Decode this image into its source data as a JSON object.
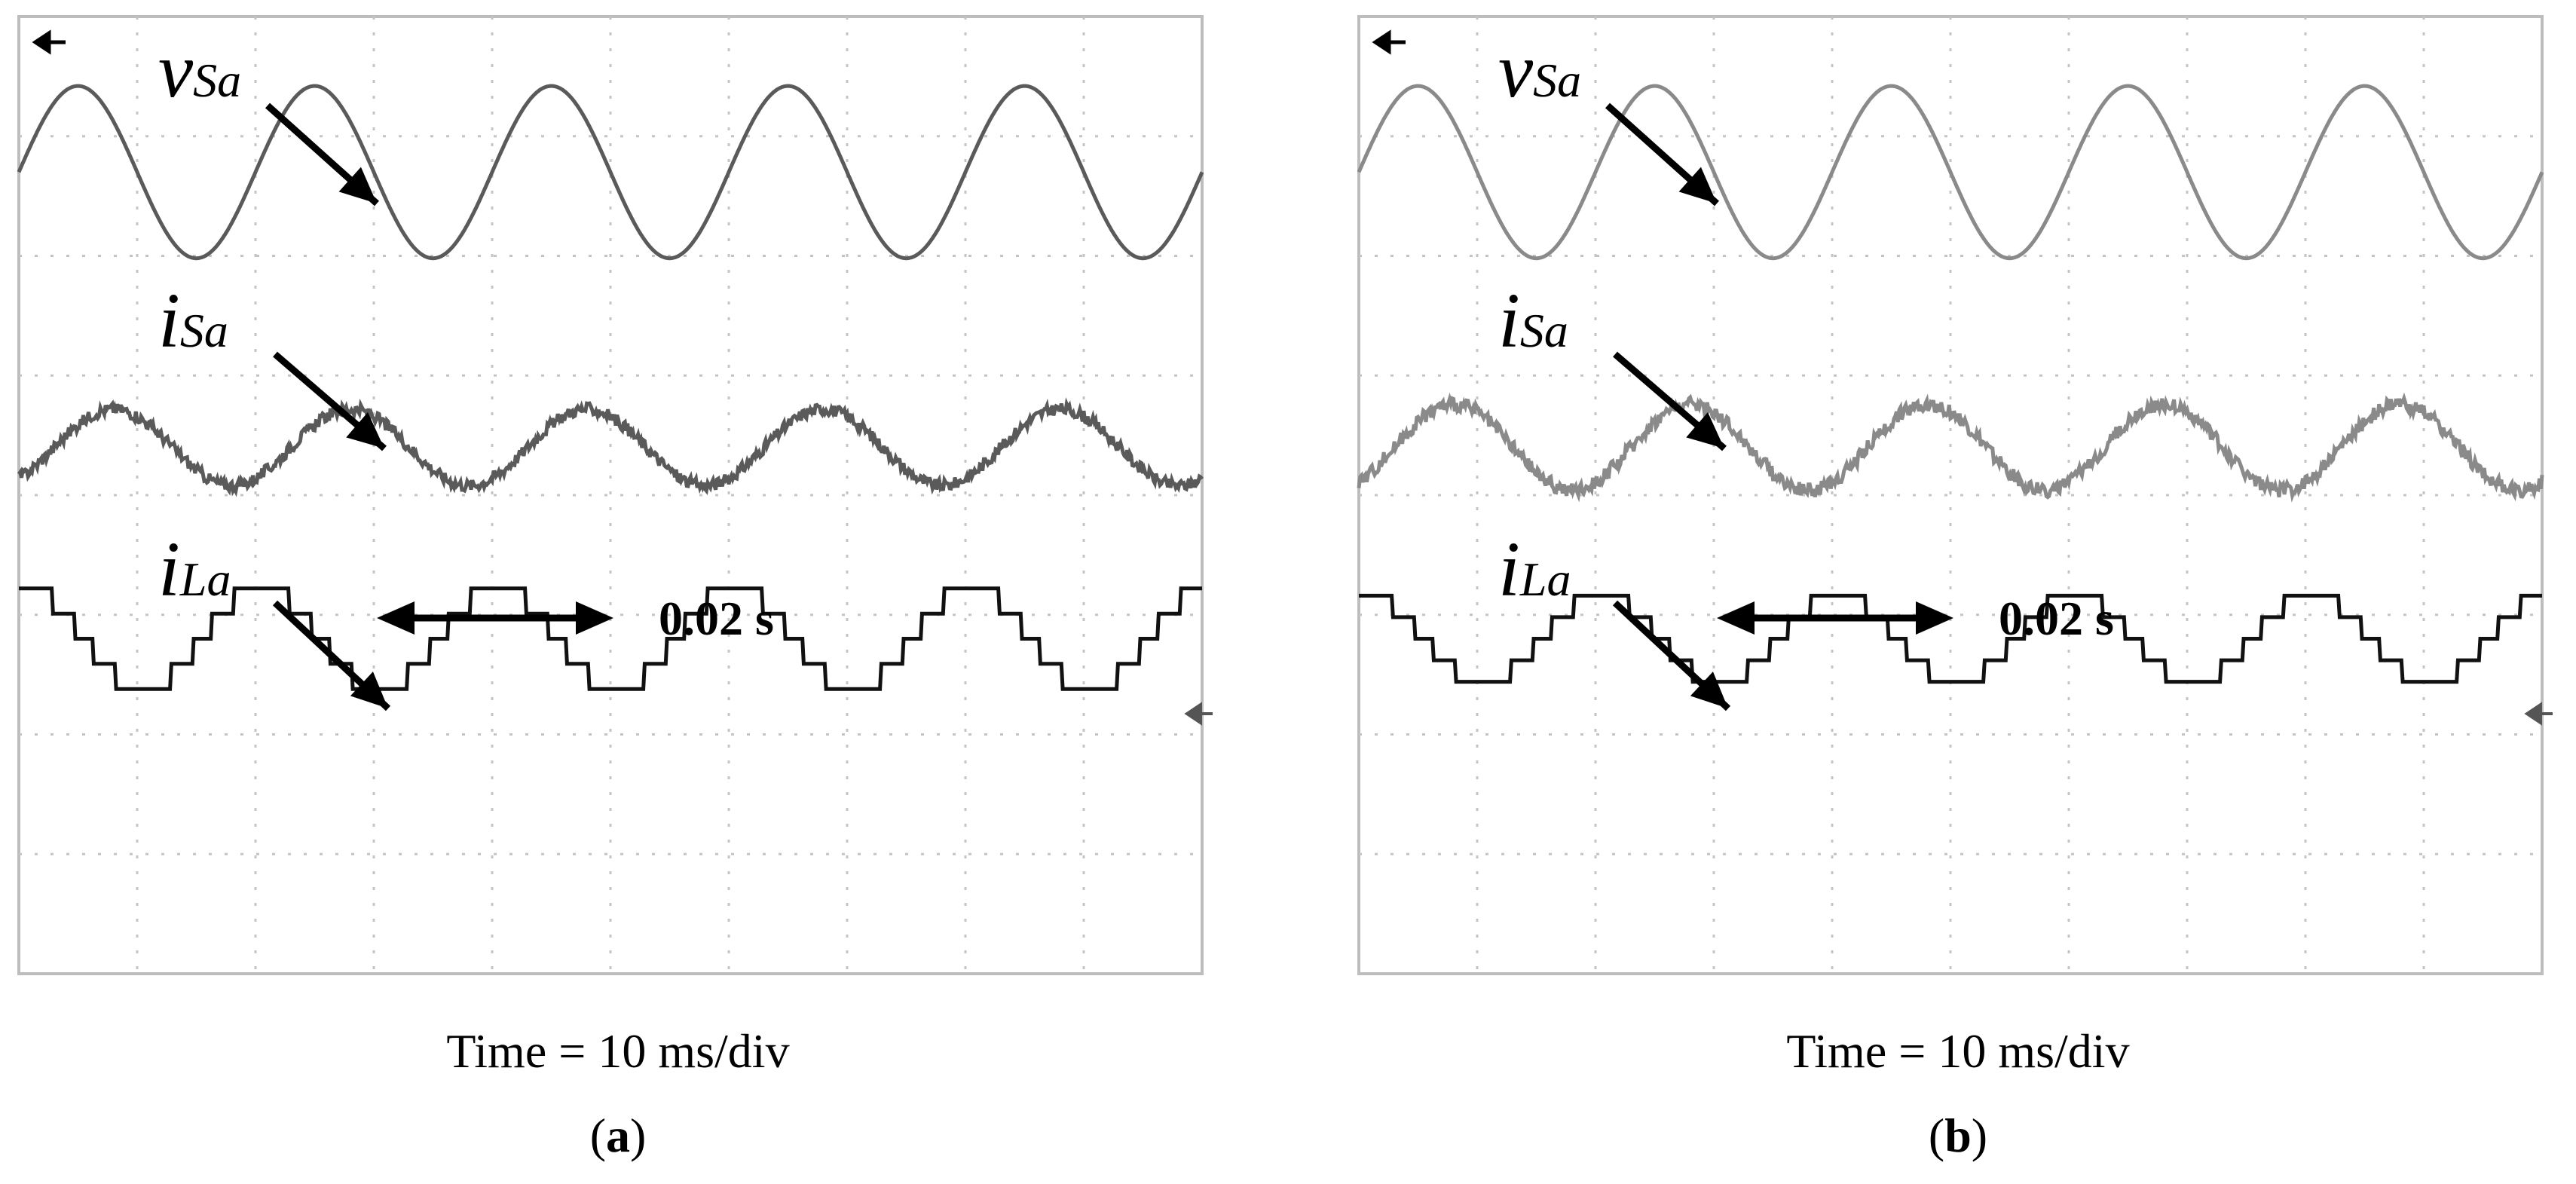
{
  "chart_data": [
    {
      "type": "line",
      "panel_label": "a",
      "timebase": "Time = 10 ms/div",
      "divisions": {
        "x": 10,
        "y": 8
      },
      "period_annotation": "0.02 s",
      "line_color": "#5a5a5a",
      "series": [
        {
          "name": "vSa",
          "label_main": "v",
          "label_sub": "Sa",
          "kind": "sine",
          "amplitude_div": 0.72,
          "offset_div": 2.7,
          "phase_start_div": 0.0,
          "period_div": 2.0,
          "noise_div": 0.0
        },
        {
          "name": "iSa",
          "label_main": "i",
          "label_sub": "Sa",
          "kind": "sine",
          "amplitude_div": 0.32,
          "offset_div": 0.4,
          "phase_start_div": 0.3,
          "period_div": 2.0,
          "noise_div": 0.1
        },
        {
          "name": "iLa",
          "label_main": "i",
          "label_sub": "La",
          "kind": "step",
          "amplitude_div": 0.42,
          "offset_div": -1.2,
          "phase_start_div": -0.45,
          "period_div": 2.0,
          "noise_div": 0.0
        }
      ]
    },
    {
      "type": "line",
      "panel_label": "b",
      "timebase": "Time = 10 ms/div",
      "divisions": {
        "x": 10,
        "y": 8
      },
      "period_annotation": "0.02 s",
      "line_color": "#8a8a8a",
      "series": [
        {
          "name": "vSa",
          "label_main": "v",
          "label_sub": "Sa",
          "kind": "sine",
          "amplitude_div": 0.72,
          "offset_div": 2.7,
          "phase_start_div": 0.0,
          "period_div": 2.0,
          "noise_div": 0.0
        },
        {
          "name": "iSa",
          "label_main": "i",
          "label_sub": "Sa",
          "kind": "sine",
          "amplitude_div": 0.36,
          "offset_div": 0.4,
          "phase_start_div": 0.3,
          "period_div": 2.0,
          "noise_div": 0.12
        },
        {
          "name": "iLa",
          "label_main": "i",
          "label_sub": "La",
          "kind": "step",
          "amplitude_div": 0.36,
          "offset_div": -1.2,
          "phase_start_div": -0.45,
          "period_div": 2.0,
          "noise_div": 0.0
        }
      ]
    }
  ]
}
